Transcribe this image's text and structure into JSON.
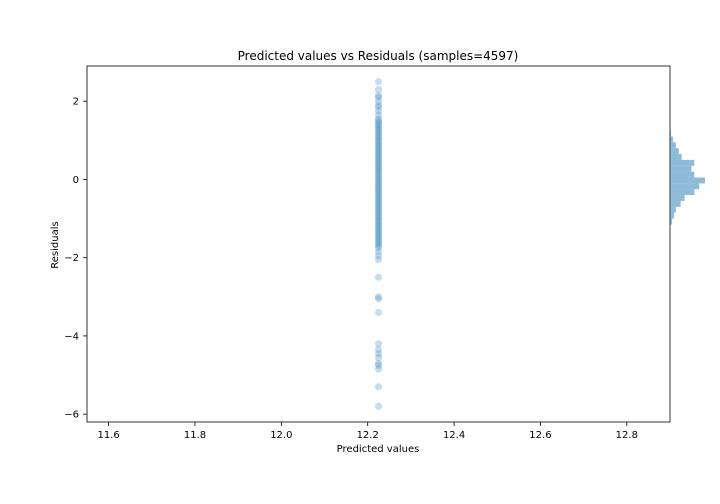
{
  "chart_data": {
    "type": "scatter",
    "title": "Predicted values vs Residuals (samples=4597)",
    "xlabel": "Predicted values",
    "ylabel": "Residuals",
    "xlim": [
      11.55,
      12.9
    ],
    "ylim": [
      -6.2,
      2.9
    ],
    "xticks": [
      11.6,
      11.8,
      12.0,
      12.2,
      12.4,
      12.6,
      12.8
    ],
    "xtick_labels": [
      "11.6",
      "11.8",
      "12.0",
      "12.2",
      "12.4",
      "12.6",
      "12.8"
    ],
    "yticks": [
      2,
      0,
      -2,
      -4,
      -6
    ],
    "ytick_labels": [
      "2",
      "0",
      "−2",
      "−4",
      "−6"
    ],
    "grid": false,
    "point_color": "#1f77b4",
    "point_alpha": 0.25,
    "scatter_x": 12.225,
    "residuals": [
      2.5,
      2.3,
      2.15,
      2.1,
      2.0,
      1.9,
      1.85,
      1.75,
      1.65,
      1.55,
      1.5,
      1.45,
      1.4,
      1.35,
      1.3,
      1.25,
      1.2,
      1.15,
      1.1,
      1.05,
      1.0,
      0.95,
      0.9,
      0.85,
      0.8,
      0.75,
      0.7,
      0.65,
      0.6,
      0.55,
      0.5,
      0.45,
      0.4,
      0.35,
      0.3,
      0.25,
      0.2,
      0.15,
      0.1,
      0.05,
      0.0,
      -0.05,
      -0.1,
      -0.15,
      -0.2,
      -0.25,
      -0.3,
      -0.35,
      -0.4,
      -0.45,
      -0.5,
      -0.55,
      -0.6,
      -0.65,
      -0.7,
      -0.75,
      -0.8,
      -0.85,
      -0.9,
      -0.95,
      -1.0,
      -1.05,
      -1.1,
      -1.15,
      -1.2,
      -1.25,
      -1.3,
      -1.35,
      -1.4,
      -1.45,
      -1.5,
      -1.55,
      -1.6,
      -1.65,
      -1.7,
      -1.75,
      -1.85,
      -1.95,
      -2.05,
      -2.5,
      -3.0,
      -3.05,
      -3.4,
      -4.2,
      -4.35,
      -4.45,
      -4.55,
      -4.7,
      -4.75,
      -4.85,
      -5.3,
      -5.8
    ],
    "histogram": {
      "orientation": "horizontal",
      "color": "#1f77b4",
      "alpha": 0.5,
      "bins": [
        {
          "y0": -1.15,
          "y1": -1.0,
          "count": 2
        },
        {
          "y0": -1.0,
          "y1": -0.85,
          "count": 4
        },
        {
          "y0": -0.85,
          "y1": -0.7,
          "count": 6
        },
        {
          "y0": -0.7,
          "y1": -0.55,
          "count": 11
        },
        {
          "y0": -0.55,
          "y1": -0.4,
          "count": 15
        },
        {
          "y0": -0.4,
          "y1": -0.25,
          "count": 25
        },
        {
          "y0": -0.25,
          "y1": -0.1,
          "count": 30
        },
        {
          "y0": -0.1,
          "y1": 0.05,
          "count": 36
        },
        {
          "y0": 0.05,
          "y1": 0.2,
          "count": 25
        },
        {
          "y0": 0.2,
          "y1": 0.35,
          "count": 22
        },
        {
          "y0": 0.35,
          "y1": 0.5,
          "count": 25
        },
        {
          "y0": 0.5,
          "y1": 0.65,
          "count": 12
        },
        {
          "y0": 0.65,
          "y1": 0.8,
          "count": 9
        },
        {
          "y0": 0.8,
          "y1": 0.95,
          "count": 6
        },
        {
          "y0": 0.95,
          "y1": 1.1,
          "count": 3
        },
        {
          "y0": 1.1,
          "y1": 1.25,
          "count": 1
        }
      ]
    }
  }
}
